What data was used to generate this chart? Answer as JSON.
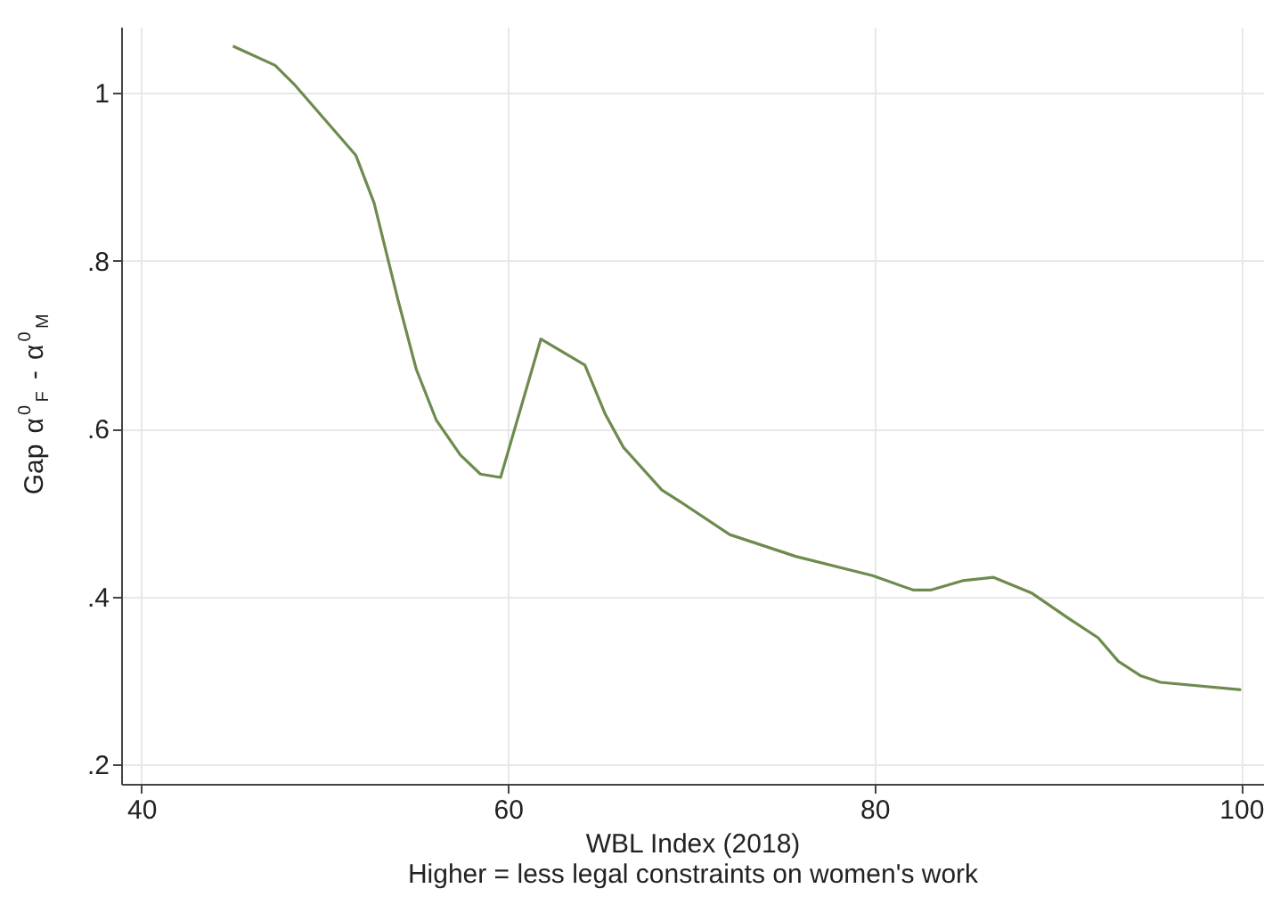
{
  "chart_data": {
    "type": "line",
    "xlabel": "WBL Index (2018)",
    "ylabel": "Gap α$^{0}$$_{F}$ - α$^{0}$$_{M}$",
    "annotations": [
      "Higher = less legal constraints on women's work"
    ],
    "x": [
      45.0,
      47.3,
      48.4,
      51.7,
      52.7,
      54.0,
      55.0,
      56.1,
      57.4,
      58.5,
      59.6,
      61.8,
      64.2,
      65.3,
      66.3,
      68.4,
      69.2,
      72.1,
      75.7,
      79.9,
      82.1,
      83.1,
      84.8,
      86.5,
      88.6,
      90.6,
      92.2,
      93.3,
      94.5,
      95.6,
      100
    ],
    "series": [
      {
        "color": "#6e8b4e",
        "values": [
          1.056,
          1.033,
          1.009,
          0.926,
          0.869,
          0.754,
          0.671,
          0.61,
          0.569,
          0.546,
          0.542,
          0.707,
          0.676,
          0.618,
          0.578,
          0.527,
          0.516,
          0.474,
          0.448,
          0.425,
          0.408,
          0.408,
          0.419,
          0.423,
          0.404,
          0.374,
          0.351,
          0.323,
          0.306,
          0.298,
          0.289
        ]
      }
    ],
    "xlim": [
      38.9,
      101.2
    ],
    "xticks": [
      40,
      60,
      80,
      100
    ],
    "ylim": [
      0.177,
      1.079
    ],
    "yticks": [
      {
        "value": 0.2,
        "label": ".2"
      },
      {
        "value": 0.4,
        "label": ".4"
      },
      {
        "value": 0.6,
        "label": ".6"
      },
      {
        "value": 0.8,
        "label": ".8"
      },
      {
        "value": 1,
        "label": "1"
      }
    ],
    "grid": true,
    "marker": "none",
    "line_style": "solid"
  }
}
